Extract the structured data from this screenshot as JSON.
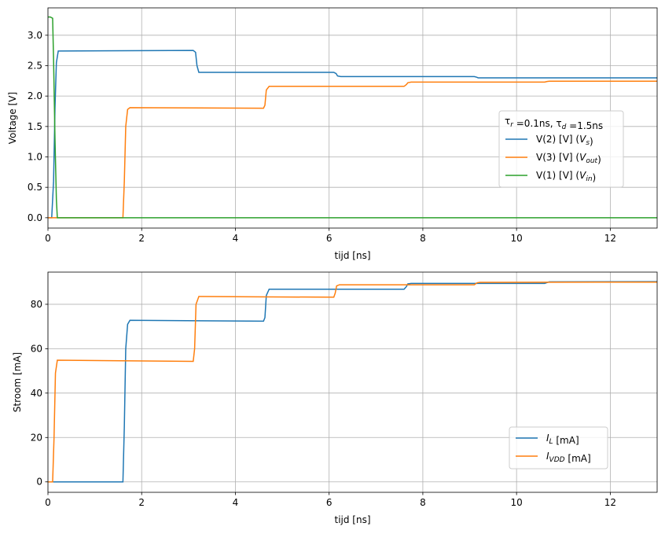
{
  "chart_data": [
    {
      "type": "line",
      "xlabel": "tijd [ns]",
      "ylabel": "Voltage [V]",
      "xlim": [
        0,
        13
      ],
      "ylim": [
        -0.17,
        3.45
      ],
      "xticks": [
        0,
        2,
        4,
        6,
        8,
        10,
        12
      ],
      "xtick_labels": [
        "0",
        "2",
        "4",
        "6",
        "8",
        "10",
        "12"
      ],
      "yticks": [
        0.0,
        0.5,
        1.0,
        1.5,
        2.0,
        2.5,
        3.0
      ],
      "ytick_labels": [
        "0.0",
        "0.5",
        "1.0",
        "1.5",
        "2.0",
        "2.5",
        "3.0"
      ],
      "grid": true,
      "legend": {
        "placement": "center-right",
        "title_parts": [
          {
            "t": "τ",
            "sub": "r"
          },
          {
            "t": " =0.1ns, "
          },
          {
            "t": "τ",
            "sub": "d"
          },
          {
            "t": " =1.5ns"
          }
        ]
      },
      "series": [
        {
          "name": "V(2) [V]  (Vs)",
          "label_parts": [
            {
              "t": "V(2) [V]  ("
            },
            {
              "t": "V",
              "sub": "s",
              "italic": true
            },
            {
              "t": ")"
            }
          ],
          "color": "#1f77b4",
          "x": [
            0,
            0.08,
            0.12,
            0.15,
            0.18,
            0.22,
            3.1,
            3.15,
            3.18,
            3.22,
            6.1,
            6.15,
            6.18,
            6.25,
            9.1,
            9.15,
            9.18,
            13
          ],
          "y": [
            0,
            0,
            0.6,
            1.8,
            2.55,
            2.74,
            2.75,
            2.72,
            2.5,
            2.39,
            2.39,
            2.37,
            2.33,
            2.32,
            2.32,
            2.31,
            2.3,
            2.3
          ]
        },
        {
          "name": "V(3) [V]  (Vout)",
          "label_parts": [
            {
              "t": "V(3) [V]  ("
            },
            {
              "t": "V",
              "sub": "out",
              "italic": true
            },
            {
              "t": ")"
            }
          ],
          "color": "#ff7f0e",
          "x": [
            0,
            1.6,
            1.63,
            1.66,
            1.7,
            1.75,
            4.6,
            4.63,
            4.66,
            4.72,
            7.6,
            7.65,
            7.68,
            7.75,
            10.6,
            10.65,
            10.7,
            13
          ],
          "y": [
            0,
            0,
            0.6,
            1.5,
            1.78,
            1.81,
            1.8,
            1.85,
            2.1,
            2.16,
            2.16,
            2.19,
            2.22,
            2.23,
            2.23,
            2.24,
            2.245,
            2.245
          ]
        },
        {
          "name": "V(1) [V]  (Vin)",
          "label_parts": [
            {
              "t": "V(1) [V]  ("
            },
            {
              "t": "V",
              "sub": "in",
              "italic": true
            },
            {
              "t": ")"
            }
          ],
          "color": "#2ca02c",
          "x": [
            0,
            0.05,
            0.1,
            0.12,
            0.15,
            0.18,
            0.2,
            13
          ],
          "y": [
            3.3,
            3.3,
            3.28,
            2.6,
            1.3,
            0.3,
            0,
            0
          ]
        }
      ]
    },
    {
      "type": "line",
      "xlabel": "tijd [ns]",
      "ylabel": "Stroom [mA]",
      "xlim": [
        0,
        13
      ],
      "ylim": [
        -4.7,
        94.5
      ],
      "xticks": [
        0,
        2,
        4,
        6,
        8,
        10,
        12
      ],
      "xtick_labels": [
        "0",
        "2",
        "4",
        "6",
        "8",
        "10",
        "12"
      ],
      "yticks": [
        0,
        20,
        40,
        60,
        80
      ],
      "ytick_labels": [
        "0",
        "20",
        "40",
        "60",
        "80"
      ],
      "grid": true,
      "legend": {
        "placement": "lower-right"
      },
      "series": [
        {
          "name": "I_L  [mA]",
          "label_parts": [
            {
              "t": "I",
              "italic": true,
              "sub": "L"
            },
            {
              "t": "  [mA]"
            }
          ],
          "color": "#1f77b4",
          "x": [
            0,
            1.6,
            1.63,
            1.66,
            1.7,
            1.75,
            4.6,
            4.63,
            4.66,
            4.72,
            7.6,
            7.65,
            7.68,
            7.75,
            10.6,
            10.65,
            10.7,
            13
          ],
          "y": [
            0,
            0,
            25,
            60,
            71,
            72.8,
            72.4,
            74,
            84,
            86.8,
            86.8,
            88,
            89.2,
            89.4,
            89.4,
            89.8,
            90.1,
            90.2
          ]
        },
        {
          "name": "I_VDD [mA]",
          "label_parts": [
            {
              "t": "I",
              "italic": true,
              "sub": "VDD"
            },
            {
              "t": " [mA]"
            }
          ],
          "color": "#ff7f0e",
          "x": [
            0,
            0.1,
            0.13,
            0.16,
            0.2,
            3.1,
            3.13,
            3.16,
            3.22,
            6.1,
            6.13,
            6.16,
            6.22,
            9.1,
            9.13,
            9.16,
            9.22,
            13
          ],
          "y": [
            0,
            0,
            20,
            49,
            54.8,
            54.3,
            60,
            80,
            83.5,
            83.2,
            85,
            88.3,
            88.8,
            88.8,
            89.3,
            89.7,
            89.9,
            90.0
          ]
        }
      ]
    }
  ]
}
